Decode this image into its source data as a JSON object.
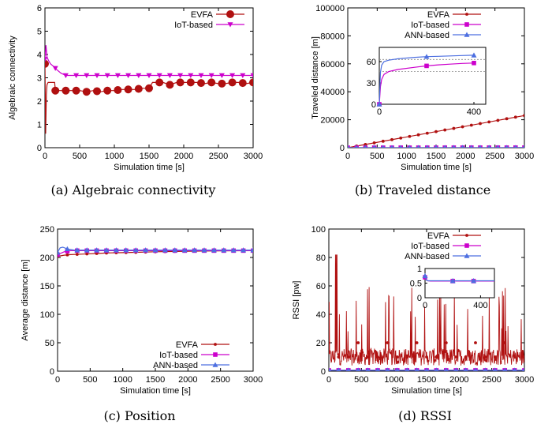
{
  "colors": {
    "evfa": "#b01010",
    "iot": "#cc00cc",
    "ann": "#4d6fe0",
    "grid": "#888888"
  },
  "chart_data": [
    {
      "id": "a",
      "type": "line",
      "caption": "(a)  Algebraic connectivity",
      "xlabel": "Simulation time [s]",
      "ylabel": "Algebraic connectivity",
      "xlim": [
        0,
        3000
      ],
      "ylim": [
        0,
        6
      ],
      "xticks": [
        0,
        500,
        1000,
        1500,
        2000,
        2500,
        3000
      ],
      "yticks": [
        0,
        1,
        2,
        3,
        4,
        5,
        6
      ],
      "legend": "top-right",
      "series": [
        {
          "name": "EVFA",
          "color": "#b01010",
          "marker": "circle",
          "x": [
            0,
            10,
            20,
            30,
            45,
            60,
            90,
            120,
            140,
            150,
            200,
            300,
            400,
            500,
            600,
            700,
            800,
            900,
            1000,
            1100,
            1200,
            1300,
            1400,
            1500,
            1550,
            1600,
            1700,
            1800,
            1900,
            2000,
            2100,
            2200,
            2300,
            2400,
            2500,
            2600,
            2700,
            2800,
            2900,
            3000
          ],
          "y": [
            3.6,
            0.6,
            2.3,
            2.7,
            2.8,
            2.8,
            2.8,
            2.8,
            2.8,
            2.45,
            2.45,
            2.45,
            2.45,
            2.45,
            2.4,
            2.45,
            2.4,
            2.45,
            2.45,
            2.5,
            2.5,
            2.5,
            2.55,
            2.55,
            2.8,
            2.8,
            2.8,
            2.7,
            2.8,
            2.8,
            2.8,
            2.8,
            2.75,
            2.8,
            2.75,
            2.75,
            2.8,
            2.8,
            2.75,
            2.8
          ],
          "markers_x": [
            0,
            150,
            300,
            450,
            600,
            750,
            900,
            1050,
            1200,
            1350,
            1500,
            1650,
            1800,
            1950,
            2100,
            2250,
            2400,
            2550,
            2700,
            2850,
            3000
          ]
        },
        {
          "name": "IoT-based",
          "color": "#cc00cc",
          "marker": "triangle-down",
          "x": [
            0,
            15,
            30,
            50,
            80,
            120,
            170,
            230,
            300,
            350,
            400,
            500,
            1000,
            1500,
            2000,
            2500,
            3000
          ],
          "y": [
            3.8,
            4.4,
            3.9,
            3.75,
            3.6,
            3.5,
            3.35,
            3.2,
            3.1,
            3.1,
            3.1,
            3.1,
            3.1,
            3.1,
            3.1,
            3.1,
            3.1
          ],
          "markers_x": [
            0,
            150,
            300,
            450,
            600,
            750,
            900,
            1050,
            1200,
            1350,
            1500,
            1650,
            1800,
            1950,
            2100,
            2250,
            2400,
            2550,
            2700,
            2850,
            3000
          ]
        }
      ]
    },
    {
      "id": "b",
      "type": "line",
      "caption": "(b)  Traveled distance",
      "xlabel": "Simulation time [s]",
      "ylabel": "Traveled distance  [m]",
      "xlim": [
        0,
        3000
      ],
      "ylim": [
        0,
        100000
      ],
      "xticks": [
        0,
        500,
        1000,
        1500,
        2000,
        2500,
        3000
      ],
      "yticks": [
        0,
        20000,
        40000,
        60000,
        80000,
        100000
      ],
      "legend": "top-right",
      "series": [
        {
          "name": "EVFA",
          "color": "#b01010",
          "marker": "dot",
          "x": [
            0,
            3000
          ],
          "y": [
            0,
            23000
          ],
          "marker_step": 150
        },
        {
          "name": "IoT-based",
          "color": "#cc00cc",
          "marker": "square",
          "x": [
            0,
            3000
          ],
          "y": [
            0,
            75
          ],
          "marker_step": 150
        },
        {
          "name": "ANN-based",
          "color": "#4d6fe0",
          "marker": "triangle",
          "x": [
            0,
            3000
          ],
          "y": [
            0,
            80
          ],
          "marker_step": 150
        }
      ],
      "inset": {
        "xlim": [
          0,
          450
        ],
        "ylim": [
          0,
          80
        ],
        "xticks": [
          0,
          400
        ],
        "yticks": [
          0,
          30,
          60
        ],
        "hlines": [
          46,
          63
        ],
        "series": [
          {
            "name": "IoT-based",
            "color": "#cc00cc",
            "marker": "square",
            "x": [
              0,
              5,
              10,
              20,
              40,
              80,
              150,
              200,
              250,
              300,
              350,
              400
            ],
            "y": [
              0,
              25,
              35,
              42,
              46,
              49,
              52,
              54,
              55.5,
              56.5,
              57.5,
              58
            ],
            "markers_x": [
              0,
              200,
              400
            ]
          },
          {
            "name": "ANN-based",
            "color": "#4d6fe0",
            "marker": "triangle",
            "x": [
              0,
              5,
              10,
              20,
              40,
              80,
              150,
              200,
              250,
              300,
              350,
              400
            ],
            "y": [
              0,
              45,
              55,
              60,
              62,
              64,
              66,
              67,
              67.5,
              68,
              68.5,
              69
            ],
            "markers_x": [
              0,
              200,
              400
            ]
          }
        ]
      }
    },
    {
      "id": "c",
      "type": "line",
      "caption": "(c)  Position",
      "xlabel": "Simulation time [s]",
      "ylabel": "Average distance [m]",
      "xlim": [
        0,
        3000
      ],
      "ylim": [
        0,
        250
      ],
      "xticks": [
        0,
        500,
        1000,
        1500,
        2000,
        2500,
        3000
      ],
      "yticks": [
        0,
        50,
        100,
        150,
        200,
        250
      ],
      "legend": "bottom-right",
      "series": [
        {
          "name": "EVFA",
          "color": "#b01010",
          "marker": "dot",
          "x": [
            0,
            100,
            200,
            400,
            600,
            800,
            1000,
            1200,
            1500,
            2000,
            2500,
            3000
          ],
          "y": [
            202,
            204,
            205,
            206,
            207,
            208,
            208.5,
            209,
            210,
            211,
            211.5,
            212
          ],
          "marker_step": 150
        },
        {
          "name": "IoT-based",
          "color": "#cc00cc",
          "marker": "square",
          "x": [
            0,
            100,
            200,
            500,
            1000,
            1500,
            2000,
            2500,
            3000
          ],
          "y": [
            205,
            210,
            212,
            212,
            212,
            212,
            212,
            212,
            212
          ],
          "marker_step": 150
        },
        {
          "name": "ANN-based",
          "color": "#4d6fe0",
          "marker": "triangle",
          "x": [
            0,
            40,
            80,
            150,
            250,
            500,
            1000,
            1500,
            2000,
            2500,
            3000
          ],
          "y": [
            209,
            217,
            218,
            215,
            213,
            213,
            213,
            213,
            213,
            213,
            213
          ],
          "marker_step": 150
        }
      ]
    },
    {
      "id": "d",
      "type": "line",
      "caption": "(d)  RSSI",
      "xlabel": "Simulation time [s]",
      "ylabel": "RSSI [pw]",
      "xlim": [
        0,
        3000
      ],
      "ylim": [
        0,
        100
      ],
      "xticks": [
        0,
        500,
        1000,
        1500,
        2000,
        2500,
        3000
      ],
      "yticks": [
        0,
        20,
        40,
        60,
        80,
        100
      ],
      "legend": "top-right",
      "series": [
        {
          "name": "EVFA",
          "color": "#b01010",
          "marker": "dot",
          "noisy": true,
          "x": [
            0,
            3000
          ],
          "y": [
            10,
            10
          ],
          "marker_step": 150
        },
        {
          "name": "IoT-based",
          "color": "#cc00cc",
          "marker": "square",
          "x": [
            0,
            3000
          ],
          "y": [
            0.6,
            0.6
          ],
          "marker_step": 150
        },
        {
          "name": "ANN-based",
          "color": "#4d6fe0",
          "marker": "triangle",
          "x": [
            0,
            3000
          ],
          "y": [
            0.6,
            0.6
          ],
          "marker_step": 150
        }
      ],
      "inset": {
        "xlim": [
          0,
          500
        ],
        "ylim": [
          0,
          1
        ],
        "xticks": [
          0,
          400
        ],
        "yticks": [
          0,
          0.5,
          1
        ],
        "series": [
          {
            "name": "IoT-based",
            "color": "#cc00cc",
            "marker": "square",
            "x": [
              0,
              10,
              20,
              40,
              80,
              150,
              250,
              350,
              500
            ],
            "y": [
              0.7,
              0.6,
              0.58,
              0.57,
              0.57,
              0.57,
              0.57,
              0.57,
              0.57
            ],
            "markers_x": [
              0,
              200,
              350
            ]
          },
          {
            "name": "ANN-based",
            "color": "#4d6fe0",
            "marker": "triangle",
            "x": [
              0,
              10,
              20,
              40,
              80,
              150,
              250,
              350,
              500
            ],
            "y": [
              0.75,
              0.6,
              0.58,
              0.58,
              0.58,
              0.58,
              0.58,
              0.58,
              0.58
            ],
            "markers_x": [
              0,
              200,
              350
            ]
          }
        ]
      }
    }
  ]
}
